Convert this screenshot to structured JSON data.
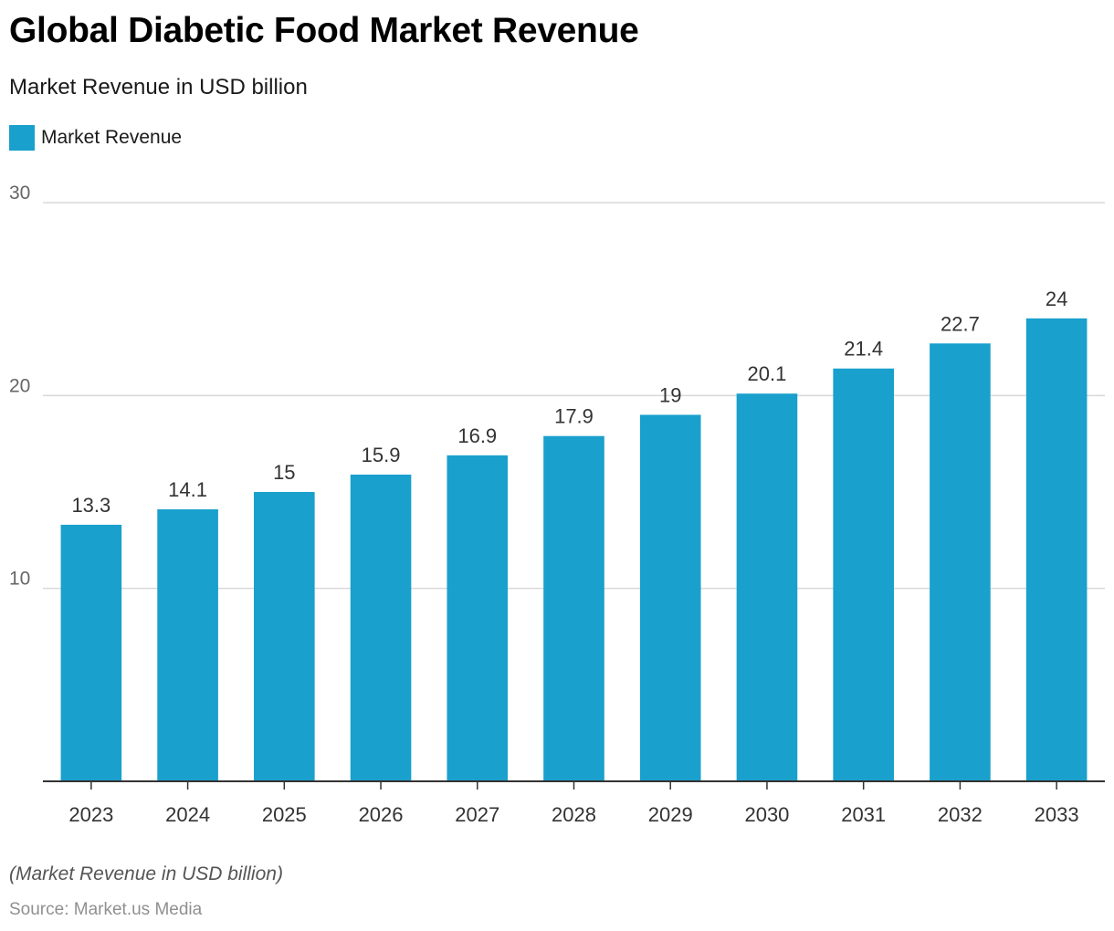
{
  "title": "Global Diabetic Food Market Revenue",
  "subtitle": "Market Revenue in USD billion",
  "footnote": "(Market Revenue in USD billion)",
  "source": "Source: Market.us Media",
  "colors": {
    "bar": "#1aa0cc",
    "grid": "#d9d9d9",
    "axis": "#333333",
    "tick_text": "#666666",
    "label_text": "#333333"
  },
  "chart_data": {
    "type": "bar",
    "title": "Global Diabetic Food Market Revenue",
    "subtitle": "Market Revenue in USD billion",
    "xlabel": "",
    "ylabel": "",
    "ylim": [
      0,
      30
    ],
    "yticks": [
      10,
      20,
      30
    ],
    "grid": true,
    "legend": "top-left",
    "categories": [
      "2023",
      "2024",
      "2025",
      "2026",
      "2027",
      "2028",
      "2029",
      "2030",
      "2031",
      "2032",
      "2033"
    ],
    "series": [
      {
        "name": "Market Revenue",
        "values": [
          13.3,
          14.1,
          15,
          15.9,
          16.9,
          17.9,
          19,
          20.1,
          21.4,
          22.7,
          24
        ]
      }
    ]
  }
}
